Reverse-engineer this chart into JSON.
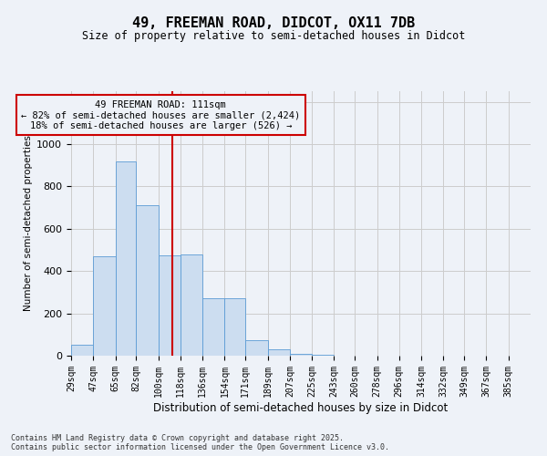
{
  "title": "49, FREEMAN ROAD, DIDCOT, OX11 7DB",
  "subtitle": "Size of property relative to semi-detached houses in Didcot",
  "xlabel": "Distribution of semi-detached houses by size in Didcot",
  "ylabel": "Number of semi-detached properties",
  "footer_line1": "Contains HM Land Registry data © Crown copyright and database right 2025.",
  "footer_line2": "Contains public sector information licensed under the Open Government Licence v3.0.",
  "annotation_title": "49 FREEMAN ROAD: 111sqm",
  "annotation_line2": "← 82% of semi-detached houses are smaller (2,424)",
  "annotation_line3": "18% of semi-detached houses are larger (526) →",
  "bar_left_edges": [
    29,
    47,
    65,
    82,
    100,
    118,
    136,
    154,
    171,
    189,
    207,
    225,
    243,
    260,
    278,
    296,
    314,
    332,
    349,
    367
  ],
  "bar_widths": [
    18,
    18,
    17,
    18,
    18,
    18,
    18,
    17,
    18,
    18,
    18,
    18,
    17,
    18,
    18,
    18,
    18,
    17,
    18,
    18
  ],
  "bar_heights": [
    50,
    470,
    920,
    710,
    475,
    480,
    270,
    270,
    75,
    30,
    10,
    5,
    2,
    1,
    0,
    0,
    0,
    0,
    0,
    0
  ],
  "bar_color": "#ccddf0",
  "bar_edge_color": "#5b9bd5",
  "tick_labels": [
    "29sqm",
    "47sqm",
    "65sqm",
    "82sqm",
    "100sqm",
    "118sqm",
    "136sqm",
    "154sqm",
    "171sqm",
    "189sqm",
    "207sqm",
    "225sqm",
    "243sqm",
    "260sqm",
    "278sqm",
    "296sqm",
    "314sqm",
    "332sqm",
    "349sqm",
    "367sqm",
    "385sqm"
  ],
  "ylim": [
    0,
    1250
  ],
  "yticks": [
    0,
    200,
    400,
    600,
    800,
    1000,
    1200
  ],
  "grid_color": "#cccccc",
  "vline_x": 111,
  "vline_color": "#cc0000",
  "annotation_box_color": "#cc0000",
  "background_color": "#eef2f8"
}
